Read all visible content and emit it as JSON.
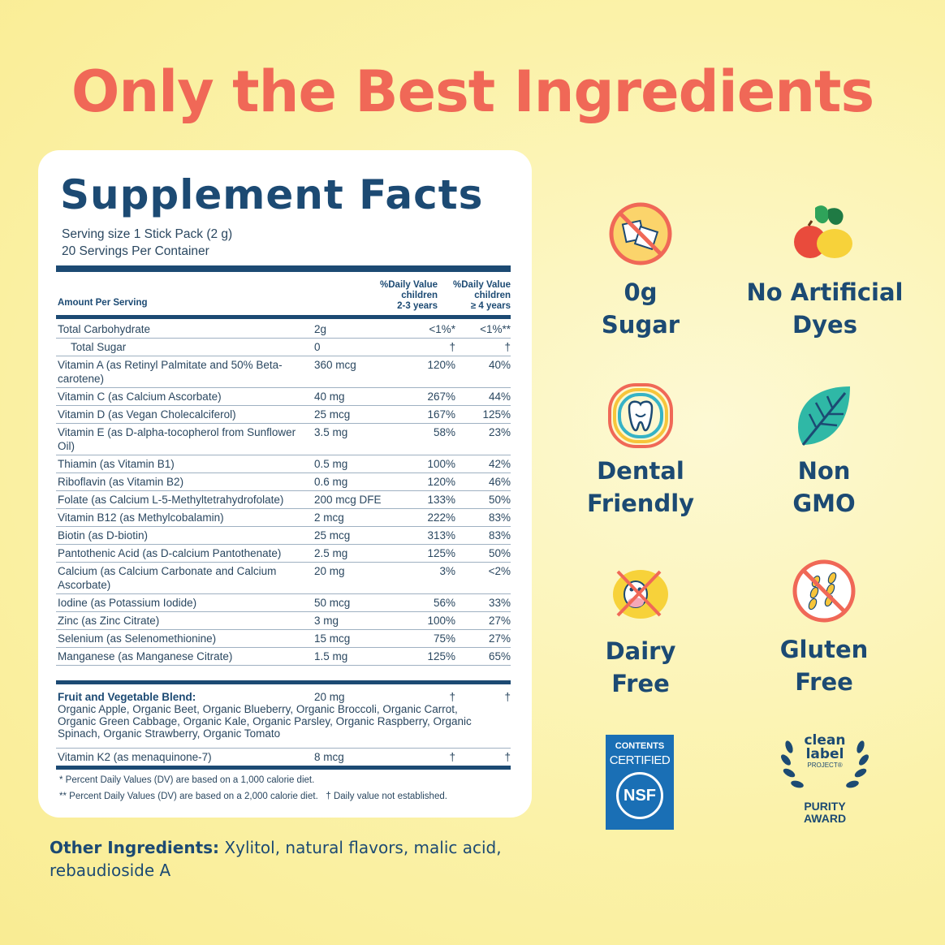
{
  "headline": "Only the Best Ingredients",
  "facts": {
    "title": "Supplement Facts",
    "serving_size": "Serving size 1 Stick Pack (2 g)",
    "servings_per_container": "20 Servings Per Container",
    "header_amount": "Amount Per Serving",
    "header_dv1_line1": "%Daily Value",
    "header_dv1_line2": "children",
    "header_dv1_line3": "2-3 years",
    "header_dv2_line1": "%Daily Value",
    "header_dv2_line2": "children",
    "header_dv2_line3": "≥ 4 years",
    "rows": [
      {
        "name": "Total Carbohydrate",
        "amount": "2g",
        "dv1": "<1%*",
        "dv2": "<1%**"
      },
      {
        "name": "Total Sugar",
        "amount": "0",
        "dv1": "†",
        "dv2": "†"
      },
      {
        "name": "Vitamin A (as Retinyl Palmitate and 50% Beta-carotene)",
        "amount": "360 mcg",
        "dv1": "120%",
        "dv2": "40%"
      },
      {
        "name": "Vitamin C (as Calcium Ascorbate)",
        "amount": "40 mg",
        "dv1": "267%",
        "dv2": "44%"
      },
      {
        "name": "Vitamin D (as Vegan Cholecalciferol)",
        "amount": "25 mcg",
        "dv1": "167%",
        "dv2": "125%"
      },
      {
        "name": "Vitamin E (as D-alpha-tocopherol from Sunflower Oil)",
        "amount": "3.5 mg",
        "dv1": "58%",
        "dv2": "23%"
      },
      {
        "name": "Thiamin (as Vitamin B1)",
        "amount": "0.5 mg",
        "dv1": "100%",
        "dv2": "42%"
      },
      {
        "name": "Riboflavin (as Vitamin B2)",
        "amount": "0.6 mg",
        "dv1": "120%",
        "dv2": "46%"
      },
      {
        "name": "Folate (as Calcium L-5-Methyltetrahydrofolate)",
        "amount": "200 mcg DFE",
        "dv1": "133%",
        "dv2": "50%"
      },
      {
        "name": "Vitamin B12 (as Methylcobalamin)",
        "amount": "2 mcg",
        "dv1": "222%",
        "dv2": "83%"
      },
      {
        "name": "Biotin (as D-biotin)",
        "amount": "25 mcg",
        "dv1": "313%",
        "dv2": "83%"
      },
      {
        "name": "Pantothenic Acid (as D-calcium Pantothenate)",
        "amount": "2.5 mg",
        "dv1": "125%",
        "dv2": "50%"
      },
      {
        "name": "Calcium (as Calcium Carbonate and Calcium Ascorbate)",
        "amount": "20 mg",
        "dv1": "3%",
        "dv2": "<2%"
      },
      {
        "name": "Iodine (as Potassium Iodide)",
        "amount": "50 mcg",
        "dv1": "56%",
        "dv2": "33%"
      },
      {
        "name": "Zinc (as Zinc Citrate)",
        "amount": "3 mg",
        "dv1": "100%",
        "dv2": "27%"
      },
      {
        "name": "Selenium (as Selenomethionine)",
        "amount": "15 mcg",
        "dv1": "75%",
        "dv2": "27%"
      },
      {
        "name": "Manganese (as Manganese Citrate)",
        "amount": "1.5 mg",
        "dv1": "125%",
        "dv2": "65%"
      }
    ],
    "blend": {
      "name": "Fruit and Vegetable Blend:",
      "amount": "20 mg",
      "dv1": "†",
      "dv2": "†",
      "ingredients": "Organic Apple, Organic Beet, Organic Blueberry, Organic Broccoli, Organic Carrot, Organic Green Cabbage, Organic Kale, Organic Parsley, Organic Raspberry, Organic Spinach, Organic Strawberry, Organic Tomato"
    },
    "k2": {
      "name": "Vitamin K2 (as menaquinone-7)",
      "amount": "8 mcg",
      "dv1": "†",
      "dv2": "†"
    },
    "footnote1": "* Percent Daily Values (DV) are based on a 1,000 calorie diet.",
    "footnote2": "** Percent Daily Values (DV) are based on a 2,000 calorie diet.   † Daily value not established."
  },
  "other_ingredients": {
    "label": "Other Ingredients:",
    "text": "Xylitol, natural flavors, malic acid, rebaudioside A"
  },
  "badges": {
    "sugar": {
      "label": "0g\nSugar",
      "icon": "no-sugar-icon"
    },
    "dyes": {
      "label": "No Artificial\nDyes",
      "icon": "fruit-icon"
    },
    "dental": {
      "label": "Dental\nFriendly",
      "icon": "tooth-icon"
    },
    "gmo": {
      "label": "Non\nGMO",
      "icon": "leaf-icon"
    },
    "dairy": {
      "label": "Dairy\nFree",
      "icon": "no-dairy-icon"
    },
    "gluten": {
      "label": "Gluten\nFree",
      "icon": "no-gluten-icon"
    },
    "nsf": {
      "line1": "CONTENTS",
      "line2": "CERTIFIED",
      "logo": "NSF",
      "icon": "nsf-logo"
    },
    "clean_label": {
      "line1": "clean",
      "line2": "label",
      "line3": "PROJECT®",
      "line4": "PURITY",
      "line5": "AWARD",
      "icon": "clean-label-seal"
    }
  },
  "colors": {
    "headline": "#f06857",
    "navy": "#1c4a73",
    "nsf_blue": "#1a6fb5"
  }
}
